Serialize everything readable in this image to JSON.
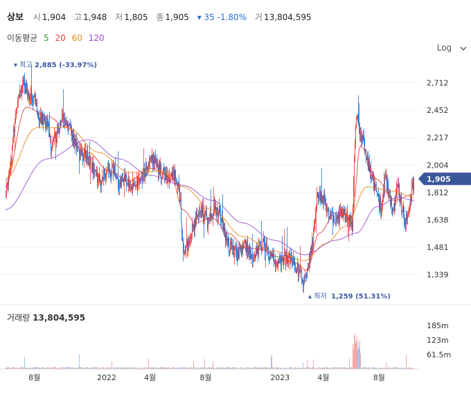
{
  "header": {
    "name": "상보",
    "open_label": "시",
    "open": "1,904",
    "high_label": "고",
    "high": "1,948",
    "low_label": "저",
    "low": "1,805",
    "close_label": "종",
    "close": "1,905",
    "change": "▾ 35 -1.80%",
    "volume_label": "거",
    "volume": "13,804,595"
  },
  "ma": {
    "label": "이동평균",
    "periods": [
      "5",
      "20",
      "60",
      "120"
    ],
    "colors": [
      "#2ca02c",
      "#e0413c",
      "#e8891d",
      "#9b4fd0"
    ]
  },
  "scale_toggle": {
    "label": "Log"
  },
  "volume_panel": {
    "label": "거래량",
    "value": "13,804,595"
  },
  "chart_data": {
    "type": "candlestick",
    "y_scale": "log",
    "ylim": [
      1230,
      3000
    ],
    "yticks": [
      "2,712",
      "2,452",
      "2,217",
      "2,004",
      "1,812",
      "1,638",
      "1,481",
      "1,339"
    ],
    "ytick_values": [
      2712,
      2452,
      2217,
      2004,
      1812,
      1638,
      1481,
      1339
    ],
    "current_price": {
      "label": "1,905",
      "value": 1905
    },
    "xticks": [
      "8월",
      "2022",
      "4월",
      "8월",
      "2023",
      "4월",
      "8월"
    ],
    "max_annotation": {
      "label": "▾ 최고",
      "value_text": "2,885 (-33.97%)",
      "value": 2885
    },
    "min_annotation": {
      "label": "▴ 최저",
      "value_text": "1,259 (51.31%)",
      "value": 1259
    },
    "price_path": [
      [
        0,
        1780
      ],
      [
        3,
        2100
      ],
      [
        6,
        2600
      ],
      [
        8,
        2700
      ],
      [
        11,
        2620
      ],
      [
        14,
        2560
      ],
      [
        17,
        2380
      ],
      [
        20,
        2350
      ],
      [
        22,
        2150
      ],
      [
        25,
        2250
      ],
      [
        28,
        2420
      ],
      [
        31,
        2280
      ],
      [
        34,
        2150
      ],
      [
        37,
        2100
      ],
      [
        40,
        2050
      ],
      [
        43,
        1960
      ],
      [
        46,
        1900
      ],
      [
        49,
        1950
      ],
      [
        52,
        1990
      ],
      [
        55,
        1880
      ],
      [
        58,
        1900
      ],
      [
        61,
        1850
      ],
      [
        64,
        1880
      ],
      [
        67,
        1950
      ],
      [
        70,
        2080
      ],
      [
        73,
        2000
      ],
      [
        76,
        1940
      ],
      [
        79,
        1920
      ],
      [
        82,
        1940
      ],
      [
        84,
        1880
      ],
      [
        86,
        1460
      ],
      [
        89,
        1520
      ],
      [
        92,
        1640
      ],
      [
        95,
        1700
      ],
      [
        98,
        1620
      ],
      [
        101,
        1700
      ],
      [
        104,
        1680
      ],
      [
        107,
        1520
      ],
      [
        110,
        1460
      ],
      [
        113,
        1440
      ],
      [
        116,
        1500
      ],
      [
        119,
        1430
      ],
      [
        122,
        1460
      ],
      [
        125,
        1500
      ],
      [
        128,
        1440
      ],
      [
        131,
        1400
      ],
      [
        134,
        1420
      ],
      [
        137,
        1420
      ],
      [
        140,
        1390
      ],
      [
        143,
        1340
      ],
      [
        145,
        1290
      ],
      [
        147,
        1420
      ],
      [
        149,
        1520
      ],
      [
        151,
        1800
      ],
      [
        154,
        1760
      ],
      [
        157,
        1660
      ],
      [
        160,
        1650
      ],
      [
        163,
        1680
      ],
      [
        166,
        1640
      ],
      [
        168,
        1600
      ],
      [
        170,
        2450
      ],
      [
        172,
        2250
      ],
      [
        174,
        2150
      ],
      [
        176,
        1980
      ],
      [
        178,
        1880
      ],
      [
        180,
        1780
      ],
      [
        182,
        1720
      ],
      [
        184,
        1900
      ],
      [
        186,
        1800
      ],
      [
        188,
        1660
      ],
      [
        190,
        1880
      ],
      [
        192,
        1700
      ],
      [
        194,
        1640
      ],
      [
        196,
        1760
      ],
      [
        198,
        1905
      ]
    ],
    "ma_curves": {
      "20": [
        [
          0,
          1850
        ],
        [
          10,
          2480
        ],
        [
          20,
          2400
        ],
        [
          30,
          2300
        ],
        [
          40,
          2100
        ],
        [
          50,
          1960
        ],
        [
          60,
          1890
        ],
        [
          70,
          1980
        ],
        [
          80,
          1930
        ],
        [
          86,
          1700
        ],
        [
          92,
          1620
        ],
        [
          100,
          1650
        ],
        [
          108,
          1560
        ],
        [
          116,
          1480
        ],
        [
          124,
          1470
        ],
        [
          132,
          1430
        ],
        [
          140,
          1400
        ],
        [
          146,
          1360
        ],
        [
          152,
          1560
        ],
        [
          160,
          1680
        ],
        [
          168,
          1660
        ],
        [
          172,
          2150
        ],
        [
          180,
          1900
        ],
        [
          188,
          1760
        ],
        [
          198,
          1800
        ]
      ],
      "60": [
        [
          0,
          1900
        ],
        [
          15,
          2300
        ],
        [
          30,
          2300
        ],
        [
          45,
          2100
        ],
        [
          60,
          1950
        ],
        [
          75,
          1960
        ],
        [
          86,
          1850
        ],
        [
          100,
          1700
        ],
        [
          115,
          1540
        ],
        [
          130,
          1460
        ],
        [
          145,
          1410
        ],
        [
          155,
          1500
        ],
        [
          165,
          1600
        ],
        [
          175,
          1850
        ],
        [
          188,
          1820
        ],
        [
          198,
          1780
        ]
      ],
      "120": [
        [
          0,
          1700
        ],
        [
          20,
          2050
        ],
        [
          40,
          2200
        ],
        [
          55,
          2050
        ],
        [
          70,
          1930
        ],
        [
          86,
          1860
        ],
        [
          100,
          1760
        ],
        [
          115,
          1620
        ],
        [
          130,
          1520
        ],
        [
          145,
          1440
        ],
        [
          160,
          1520
        ],
        [
          170,
          1560
        ],
        [
          180,
          1720
        ],
        [
          190,
          1780
        ],
        [
          198,
          1760
        ]
      ]
    },
    "volume": {
      "yticks": [
        "185m",
        "123m",
        "61.5m"
      ],
      "ytick_values": [
        185,
        123,
        61.5
      ],
      "ylim": [
        0,
        200
      ]
    }
  }
}
